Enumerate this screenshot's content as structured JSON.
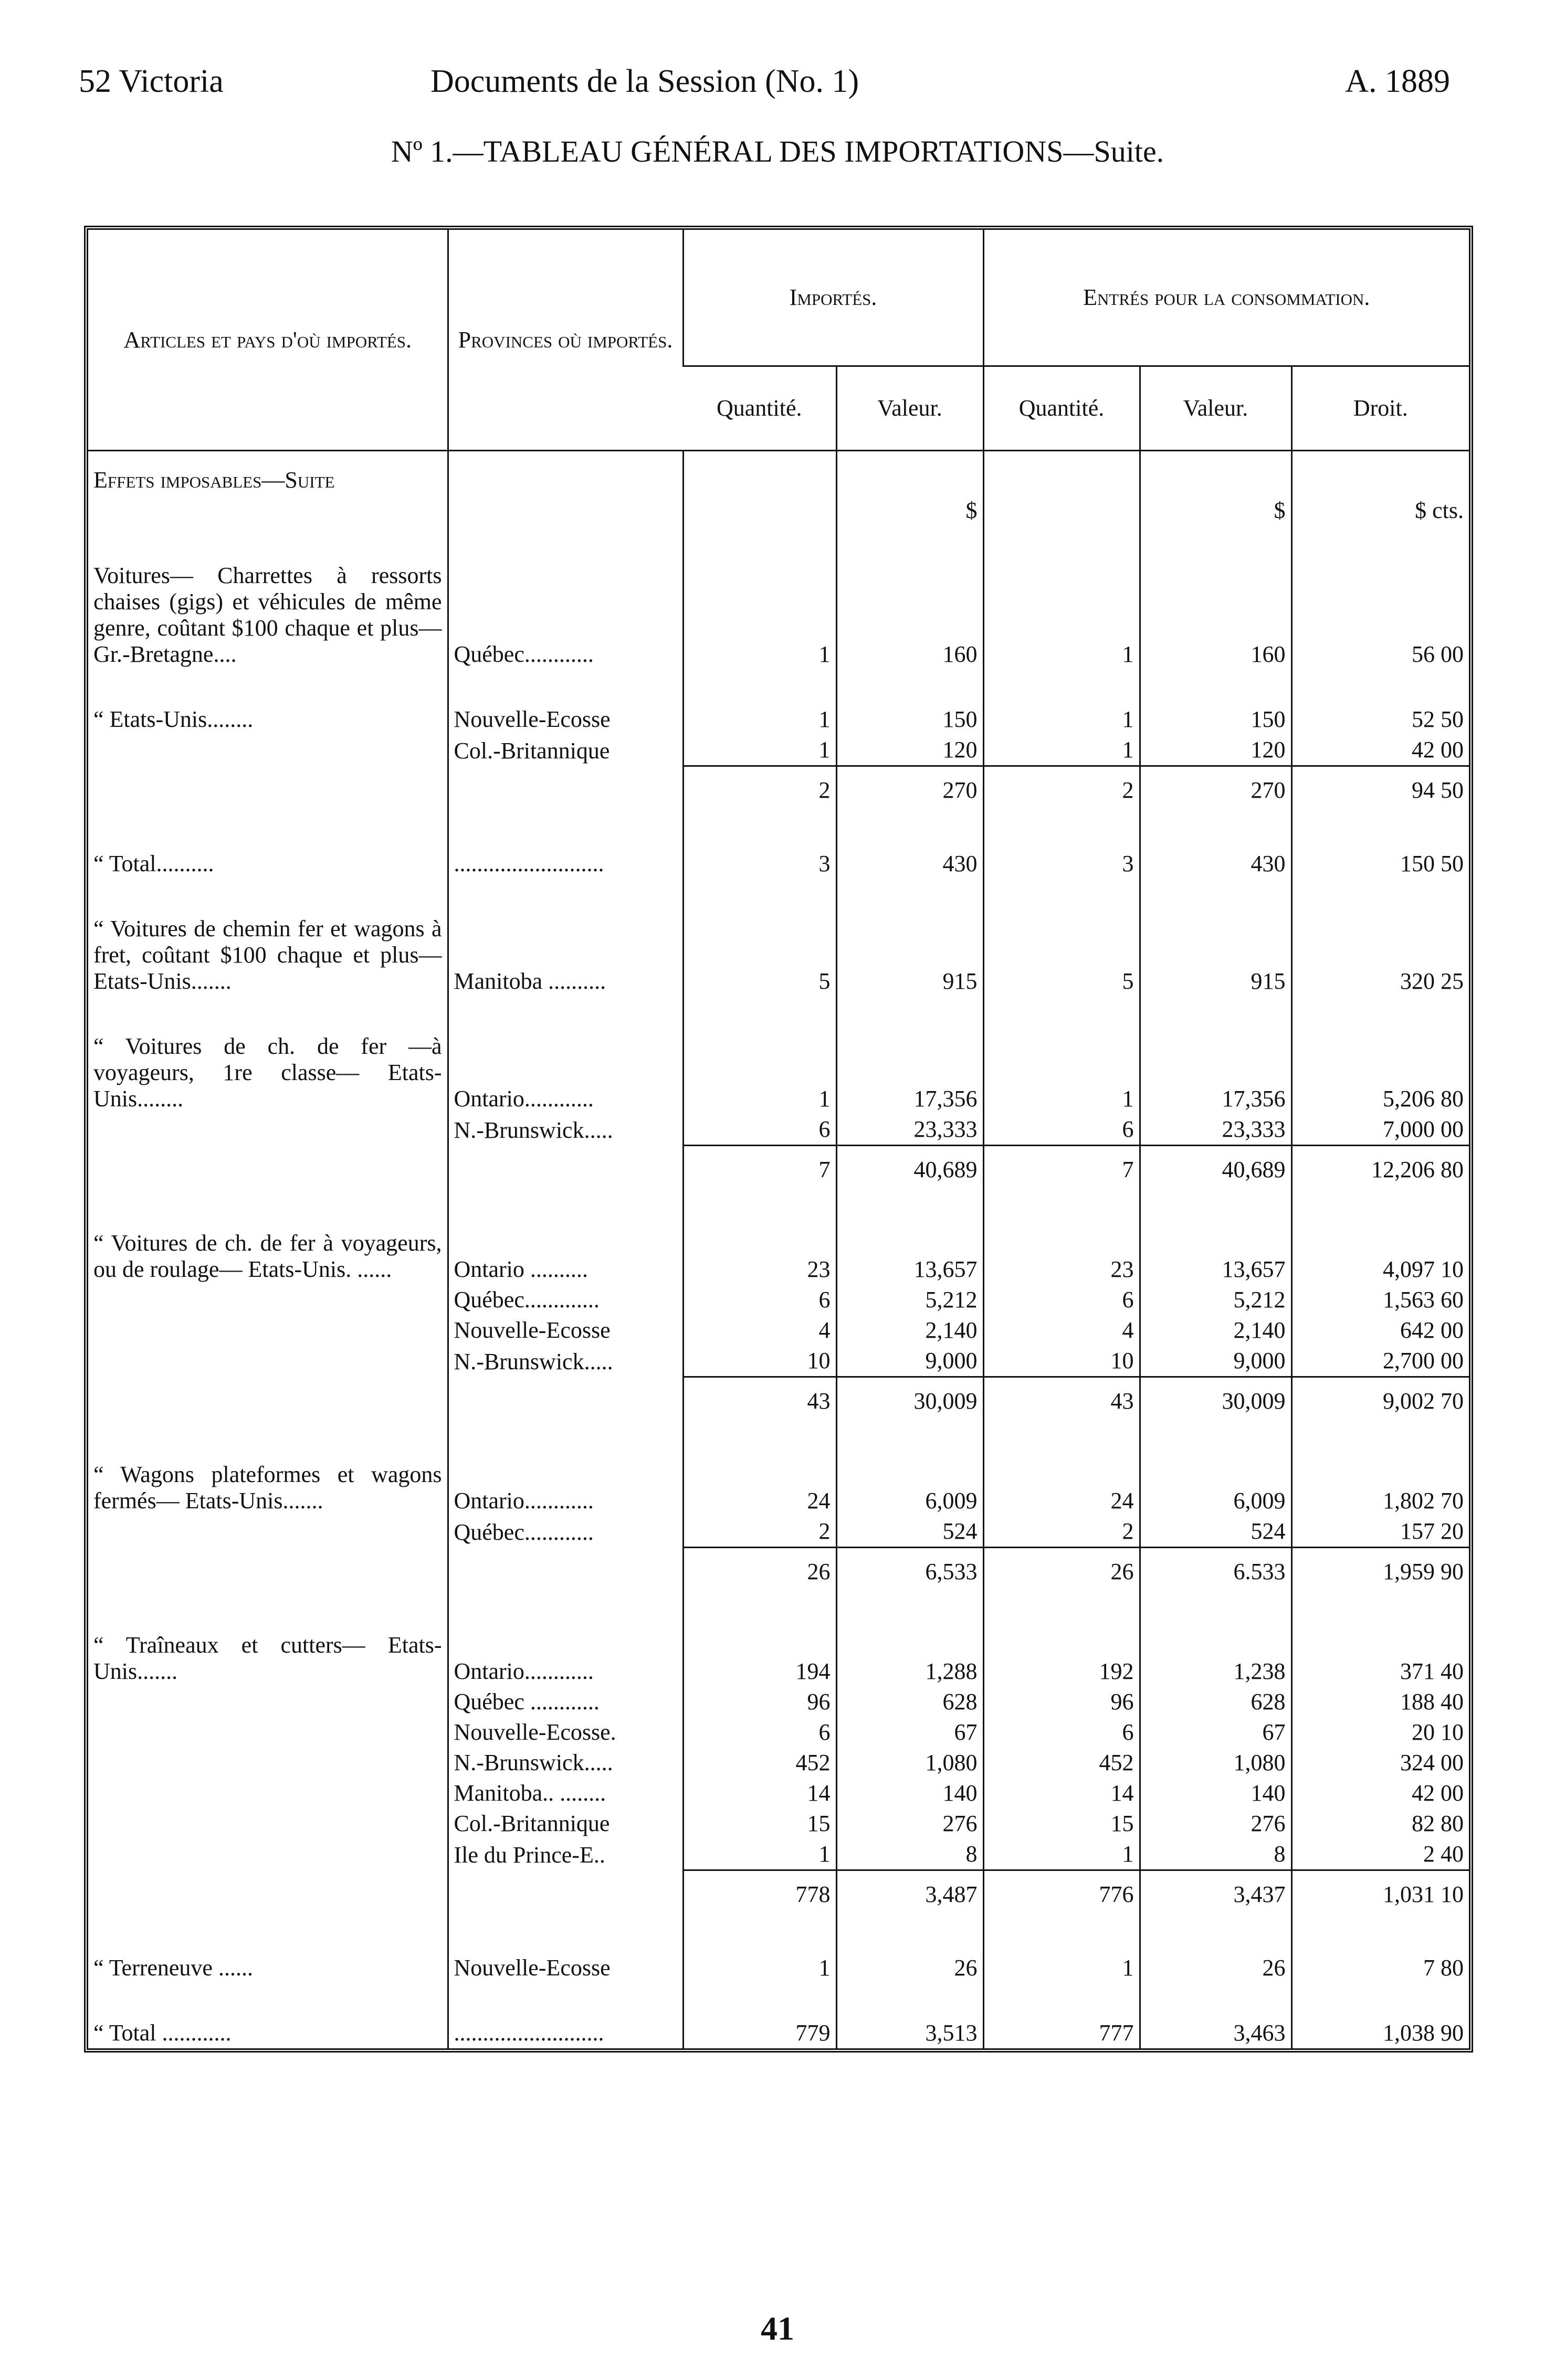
{
  "header": {
    "left": "52 Victoria",
    "center": "Documents de la Session (No. 1)",
    "right": "A. 1889"
  },
  "title": "Nº 1.—TABLEAU GÉNÉRAL DES IMPORTATIONS—Suite.",
  "table": {
    "columns": {
      "article": "Articles et pays d'où importés.",
      "province": "Provinces où importés.",
      "imported": "Importés.",
      "entered": "Entrés pour la consommation.",
      "sub": [
        "Quantité.",
        "Valeur.",
        "Quantité.",
        "Valeur.",
        "Droit."
      ]
    },
    "section": "Effets imposables—Suite",
    "units": [
      null,
      "$",
      null,
      "$",
      "$ cts."
    ],
    "rows": [
      [
        "Voitures— Charrettes à ressorts chaises (gigs) et véhicules de même genre, coûtant $100 chaque et plus— Gr.-Bretagne....",
        "Québec............",
        "1",
        "160",
        "1",
        "160",
        "56 00"
      ],
      [
        "“ Etats-Unis........",
        "Nouvelle-Ecosse",
        "1",
        "150",
        "1",
        "150",
        "52 50"
      ],
      [
        null,
        "Col.-Britannique",
        "1",
        "120",
        "1",
        "120",
        "42 00"
      ],
      [
        null,
        null,
        "2",
        "270",
        "2",
        "270",
        "94 50"
      ],
      [
        "“ Total..........",
        "..........................",
        "3",
        "430",
        "3",
        "430",
        "150 50"
      ],
      [
        "“ Voitures de chemin fer et wagons à fret, coûtant $100 chaque et plus— Etats-Unis.......",
        "Manitoba ..........",
        "5",
        "915",
        "5",
        "915",
        "320 25"
      ],
      [
        "“ Voitures de ch. de fer —à voyageurs, 1re classe— Etats-Unis........",
        "Ontario............",
        "1",
        "17,356",
        "1",
        "17,356",
        "5,206 80"
      ],
      [
        null,
        "N.-Brunswick.....",
        "6",
        "23,333",
        "6",
        "23,333",
        "7,000 00"
      ],
      [
        null,
        null,
        "7",
        "40,689",
        "7",
        "40,689",
        "12,206 80"
      ],
      [
        "“ Voitures de ch. de fer à voyageurs, ou de roulage— Etats-Unis. ......",
        "Ontario ..........",
        "23",
        "13,657",
        "23",
        "13,657",
        "4,097 10"
      ],
      [
        null,
        "Québec.............",
        "6",
        "5,212",
        "6",
        "5,212",
        "1,563 60"
      ],
      [
        null,
        "Nouvelle-Ecosse",
        "4",
        "2,140",
        "4",
        "2,140",
        "642 00"
      ],
      [
        null,
        "N.-Brunswick.....",
        "10",
        "9,000",
        "10",
        "9,000",
        "2,700 00"
      ],
      [
        null,
        null,
        "43",
        "30,009",
        "43",
        "30,009",
        "9,002 70"
      ],
      [
        "“ Wagons plateformes et wagons fermés— Etats-Unis.......",
        "Ontario............",
        "24",
        "6,009",
        "24",
        "6,009",
        "1,802 70"
      ],
      [
        null,
        "Québec............",
        "2",
        "524",
        "2",
        "524",
        "157 20"
      ],
      [
        null,
        null,
        "26",
        "6,533",
        "26",
        "6.533",
        "1,959 90"
      ],
      [
        "“ Traîneaux et cutters— Etats-Unis.......",
        "Ontario............",
        "194",
        "1,288",
        "192",
        "1,238",
        "371 40"
      ],
      [
        null,
        "Québec ............",
        "96",
        "628",
        "96",
        "628",
        "188 40"
      ],
      [
        null,
        "Nouvelle-Ecosse.",
        "6",
        "67",
        "6",
        "67",
        "20 10"
      ],
      [
        null,
        "N.-Brunswick.....",
        "452",
        "1,080",
        "452",
        "1,080",
        "324 00"
      ],
      [
        null,
        "Manitoba.. ........",
        "14",
        "140",
        "14",
        "140",
        "42 00"
      ],
      [
        null,
        "Col.-Britannique",
        "15",
        "276",
        "15",
        "276",
        "82 80"
      ],
      [
        null,
        "Ile du Prince-E..",
        "1",
        "8",
        "1",
        "8",
        "2 40"
      ],
      [
        null,
        null,
        "778",
        "3,487",
        "776",
        "3,437",
        "1,031 10"
      ],
      [
        "“ Terreneuve ......",
        "Nouvelle-Ecosse",
        "1",
        "26",
        "1",
        "26",
        "7 80"
      ],
      [
        "“ Total ............",
        "..........................",
        "779",
        "3,513",
        "777",
        "3,463",
        "1,038 90"
      ]
    ]
  },
  "footer": "41"
}
